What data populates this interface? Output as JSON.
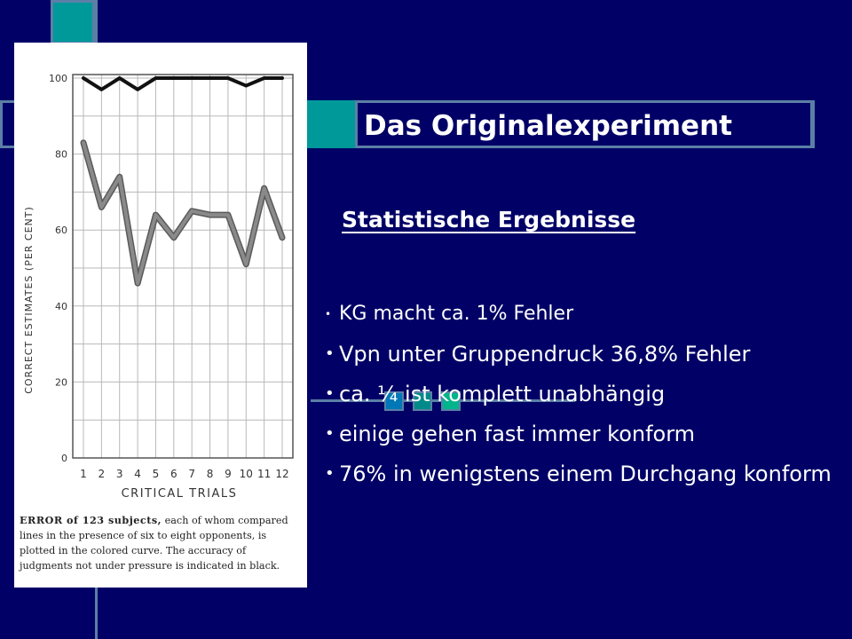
{
  "title": "Das Originalexperiment",
  "section_heading": "Statistische Ergebnisse",
  "bullets": [
    "KG macht ca. 1% Fehler",
    "Vpn unter Gruppendruck 36,8% Fehler",
    "ca. ¼  ist komplett unabhängig",
    "einige gehen fast immer konform",
    "76% in wenigstens einem Durchgang konform"
  ],
  "colors": {
    "background": "#000066",
    "deco_teal": "#00999a",
    "deco_outline": "#5b7fa6",
    "square_blue": "#0077b6",
    "square_teal": "#008a8a",
    "square_green": "#00b48c"
  },
  "chart_data": {
    "type": "line",
    "xlabel": "CRITICAL TRIALS",
    "ylabel": "CORRECT ESTIMATES (PER CENT)",
    "categories": [
      "1",
      "2",
      "3",
      "4",
      "5",
      "6",
      "7",
      "8",
      "9",
      "10",
      "11",
      "12"
    ],
    "y_ticks": [
      "0",
      "20",
      "40",
      "60",
      "80",
      "100"
    ],
    "ylim": [
      0,
      100
    ],
    "grid": true,
    "series": [
      {
        "name": "",
        "color": "#111111",
        "values": [
          100,
          97,
          100,
          97,
          100,
          100,
          100,
          100,
          100,
          98,
          100,
          100
        ]
      },
      {
        "name": "",
        "color": "#8a8a8a",
        "values": [
          83,
          66,
          74,
          46,
          64,
          58,
          65,
          64,
          64,
          51,
          71,
          58
        ]
      }
    ],
    "caption_lead": "ERROR of 123 subjects,",
    "caption_rest": " each of whom compared lines in the presence of six to eight opponents, is plotted in the colored curve. The accuracy of judgments not under pressure is indicated in black."
  }
}
